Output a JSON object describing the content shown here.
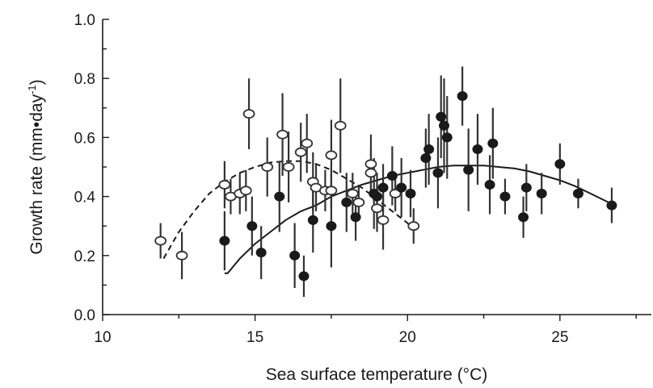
{
  "chart_data": {
    "type": "scatter",
    "title": "",
    "xlabel": "Sea surface temperature (°C)",
    "ylabel": "Growth rate (mm•day",
    "ylabel_superscript": "-1",
    "ylabel_close": ")",
    "xlim": [
      10,
      28
    ],
    "ylim": [
      0.0,
      1.0
    ],
    "x_ticks": [
      10,
      15,
      20,
      25
    ],
    "x_tick_labels": [
      "10",
      "15",
      "20",
      "25"
    ],
    "y_ticks": [
      0.0,
      0.2,
      0.4,
      0.6,
      0.8,
      1.0
    ],
    "y_tick_labels": [
      "0.0",
      "0.2",
      "0.4",
      "0.6",
      "0.8",
      "1.0"
    ],
    "grid": false,
    "series": [
      {
        "marker": "open-circle",
        "color": "#333333",
        "points": [
          {
            "x": 11.9,
            "y": 0.25,
            "err": 0.06
          },
          {
            "x": 12.6,
            "y": 0.2,
            "err": 0.08
          },
          {
            "x": 14.0,
            "y": 0.44,
            "err": 0.08
          },
          {
            "x": 14.2,
            "y": 0.4,
            "err": 0.06
          },
          {
            "x": 14.5,
            "y": 0.41,
            "err": 0.07
          },
          {
            "x": 14.7,
            "y": 0.42,
            "err": 0.07
          },
          {
            "x": 14.8,
            "y": 0.68,
            "err": 0.12
          },
          {
            "x": 15.4,
            "y": 0.5,
            "err": 0.1
          },
          {
            "x": 15.9,
            "y": 0.61,
            "err": 0.14
          },
          {
            "x": 16.1,
            "y": 0.5,
            "err": 0.12
          },
          {
            "x": 16.5,
            "y": 0.55,
            "err": 0.1
          },
          {
            "x": 16.7,
            "y": 0.58,
            "err": 0.1
          },
          {
            "x": 16.9,
            "y": 0.45,
            "err": 0.1
          },
          {
            "x": 17.0,
            "y": 0.43,
            "err": 0.08
          },
          {
            "x": 17.3,
            "y": 0.42,
            "err": 0.07
          },
          {
            "x": 17.5,
            "y": 0.54,
            "err": 0.12
          },
          {
            "x": 17.5,
            "y": 0.42,
            "err": 0.06
          },
          {
            "x": 17.8,
            "y": 0.64,
            "err": 0.16
          },
          {
            "x": 18.2,
            "y": 0.41,
            "err": 0.07
          },
          {
            "x": 18.4,
            "y": 0.38,
            "err": 0.06
          },
          {
            "x": 18.8,
            "y": 0.51,
            "err": 0.1
          },
          {
            "x": 18.8,
            "y": 0.48,
            "err": 0.08
          },
          {
            "x": 19.0,
            "y": 0.36,
            "err": 0.08
          },
          {
            "x": 19.2,
            "y": 0.32,
            "err": 0.1
          },
          {
            "x": 19.6,
            "y": 0.41,
            "err": 0.06
          },
          {
            "x": 20.2,
            "y": 0.3,
            "err": 0.06
          }
        ]
      },
      {
        "marker": "filled-circle",
        "color": "#1a1a1a",
        "points": [
          {
            "x": 14.0,
            "y": 0.25,
            "err": 0.1
          },
          {
            "x": 14.9,
            "y": 0.3,
            "err": 0.1
          },
          {
            "x": 15.2,
            "y": 0.21,
            "err": 0.09
          },
          {
            "x": 15.8,
            "y": 0.4,
            "err": 0.12
          },
          {
            "x": 16.3,
            "y": 0.2,
            "err": 0.11
          },
          {
            "x": 16.6,
            "y": 0.13,
            "err": 0.07
          },
          {
            "x": 16.9,
            "y": 0.32,
            "err": 0.11
          },
          {
            "x": 17.5,
            "y": 0.3,
            "err": 0.14
          },
          {
            "x": 18.0,
            "y": 0.38,
            "err": 0.1
          },
          {
            "x": 18.3,
            "y": 0.33,
            "err": 0.08
          },
          {
            "x": 18.9,
            "y": 0.41,
            "err": 0.12
          },
          {
            "x": 19.0,
            "y": 0.4,
            "err": 0.08
          },
          {
            "x": 19.2,
            "y": 0.43,
            "err": 0.08
          },
          {
            "x": 19.5,
            "y": 0.47,
            "err": 0.1
          },
          {
            "x": 19.8,
            "y": 0.43,
            "err": 0.1
          },
          {
            "x": 20.1,
            "y": 0.41,
            "err": 0.08
          },
          {
            "x": 20.6,
            "y": 0.53,
            "err": 0.1
          },
          {
            "x": 20.7,
            "y": 0.56,
            "err": 0.12
          },
          {
            "x": 21.0,
            "y": 0.48,
            "err": 0.12
          },
          {
            "x": 21.1,
            "y": 0.67,
            "err": 0.14
          },
          {
            "x": 21.2,
            "y": 0.64,
            "err": 0.16
          },
          {
            "x": 21.3,
            "y": 0.6,
            "err": 0.14
          },
          {
            "x": 21.8,
            "y": 0.74,
            "err": 0.1
          },
          {
            "x": 22.0,
            "y": 0.49,
            "err": 0.14
          },
          {
            "x": 22.3,
            "y": 0.56,
            "err": 0.12
          },
          {
            "x": 22.7,
            "y": 0.44,
            "err": 0.1
          },
          {
            "x": 22.8,
            "y": 0.58,
            "err": 0.12
          },
          {
            "x": 23.2,
            "y": 0.4,
            "err": 0.06
          },
          {
            "x": 23.8,
            "y": 0.33,
            "err": 0.07
          },
          {
            "x": 23.9,
            "y": 0.43,
            "err": 0.08
          },
          {
            "x": 24.4,
            "y": 0.41,
            "err": 0.07
          },
          {
            "x": 25.0,
            "y": 0.51,
            "err": 0.07
          },
          {
            "x": 25.6,
            "y": 0.41,
            "err": 0.05
          },
          {
            "x": 26.7,
            "y": 0.37,
            "err": 0.06
          }
        ]
      }
    ],
    "fits": [
      {
        "style": "dashed",
        "points": [
          [
            12.0,
            0.19
          ],
          [
            12.5,
            0.28
          ],
          [
            13.0,
            0.35
          ],
          [
            13.5,
            0.41
          ],
          [
            14.0,
            0.45
          ],
          [
            14.5,
            0.48
          ],
          [
            15.0,
            0.5
          ],
          [
            15.5,
            0.515
          ],
          [
            16.0,
            0.52
          ],
          [
            16.5,
            0.52
          ],
          [
            17.0,
            0.51
          ],
          [
            17.5,
            0.49
          ],
          [
            18.0,
            0.46
          ],
          [
            18.5,
            0.43
          ],
          [
            19.0,
            0.39
          ],
          [
            19.5,
            0.35
          ],
          [
            20.0,
            0.31
          ],
          [
            20.2,
            0.29
          ]
        ]
      },
      {
        "style": "solid",
        "points": [
          [
            14.0,
            0.14
          ],
          [
            14.1,
            0.14
          ],
          [
            14.5,
            0.19
          ],
          [
            15.0,
            0.24
          ],
          [
            15.5,
            0.28
          ],
          [
            16.0,
            0.32
          ],
          [
            16.5,
            0.35
          ],
          [
            17.0,
            0.37
          ],
          [
            17.5,
            0.4
          ],
          [
            18.0,
            0.42
          ],
          [
            18.5,
            0.44
          ],
          [
            19.0,
            0.455
          ],
          [
            19.5,
            0.47
          ],
          [
            20.0,
            0.48
          ],
          [
            20.5,
            0.49
          ],
          [
            21.0,
            0.5
          ],
          [
            21.5,
            0.505
          ],
          [
            22.0,
            0.505
          ],
          [
            22.5,
            0.505
          ],
          [
            23.0,
            0.5
          ],
          [
            23.5,
            0.495
          ],
          [
            24.0,
            0.485
          ],
          [
            24.5,
            0.47
          ],
          [
            25.0,
            0.455
          ],
          [
            25.5,
            0.435
          ],
          [
            26.0,
            0.41
          ],
          [
            26.5,
            0.385
          ],
          [
            26.8,
            0.37
          ]
        ]
      }
    ]
  }
}
